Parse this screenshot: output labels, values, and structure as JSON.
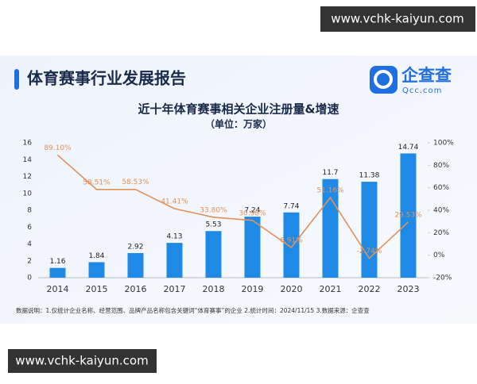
{
  "watermarks": [
    "www.vchk-kaiyun.com",
    "www.vchk-kaiyun.com"
  ],
  "header": {
    "title": "体育赛事行业发展报告",
    "logo": "企查查",
    "logo_domain": "Qcc.com"
  },
  "footnote": "数据说明：1.仅统计企业名称、经营范围、品牌产品名称包含关键词“体育赛事”的企业 2.统计时间：2024/11/15 3.数据来源：企查查",
  "chart_data": {
    "type": "combo",
    "title": "近十年体育赛事相关企业注册量&增速",
    "subtitle": "（单位：万家）",
    "categories": [
      "2014",
      "2015",
      "2016",
      "2017",
      "2018",
      "2019",
      "2020",
      "2021",
      "2022",
      "2023"
    ],
    "series": [
      {
        "type": "bar",
        "color": "#1f8ae6",
        "values": [
          1.16,
          1.84,
          2.92,
          4.13,
          5.53,
          7.24,
          7.74,
          11.7,
          11.38,
          14.74
        ]
      },
      {
        "type": "line",
        "axis": "y2",
        "color": "#e0925a",
        "values": [
          89.1,
          58.51,
          58.53,
          41.41,
          33.8,
          30.98,
          6.91,
          51.16,
          -2.74,
          29.53
        ],
        "value_labels": [
          "89.10%",
          "58.51%",
          "58.53%",
          "41.41%",
          "33.80%",
          "30.98%",
          "6.91%",
          "51.16%",
          "-2.74%",
          "29.53%"
        ]
      }
    ],
    "ylim": [
      0,
      16
    ],
    "yticks": [
      0,
      2,
      4,
      6,
      8,
      10,
      12,
      14,
      16
    ],
    "y2lim": [
      -20,
      100
    ],
    "y2ticks": [
      {
        "value": -20,
        "label": "-20%"
      },
      {
        "value": 0,
        "label": "0%"
      },
      {
        "value": 20,
        "label": "20%"
      },
      {
        "value": 40,
        "label": "40%"
      },
      {
        "value": 60,
        "label": "60%"
      },
      {
        "value": 80,
        "label": "80%"
      },
      {
        "value": 100,
        "label": "100%"
      }
    ],
    "grid": false
  }
}
